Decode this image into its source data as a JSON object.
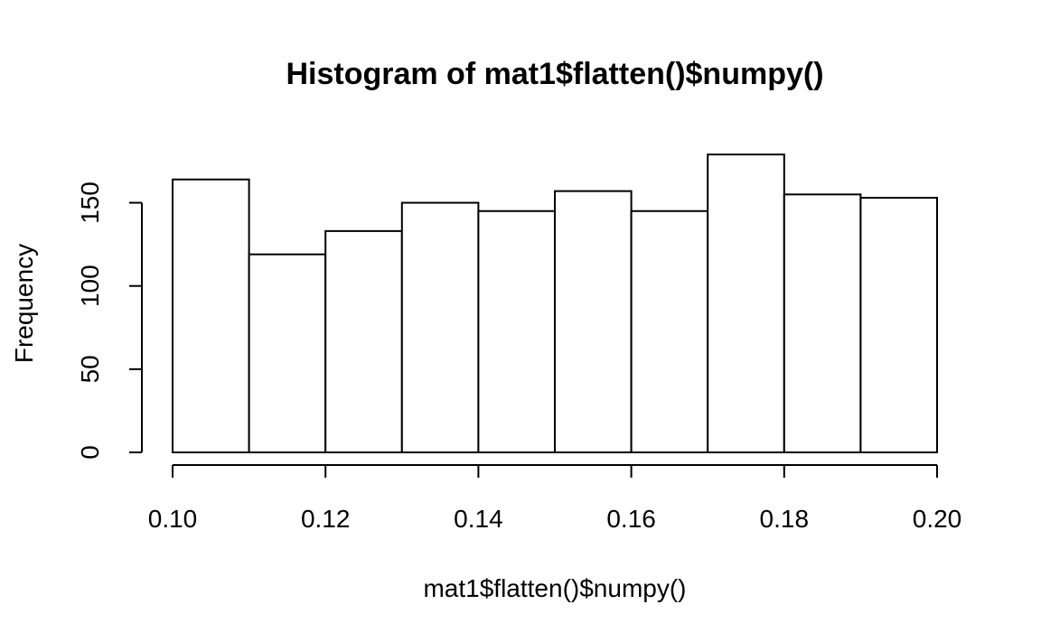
{
  "chart_data": {
    "type": "bar",
    "title": "Histogram of mat1$flatten()$numpy()",
    "xlabel": "mat1$flatten()$numpy()",
    "ylabel": "Frequency",
    "bin_edges": [
      0.1,
      0.11,
      0.12,
      0.13,
      0.14,
      0.15,
      0.16,
      0.17,
      0.18,
      0.19,
      0.2
    ],
    "values": [
      164,
      119,
      133,
      150,
      145,
      157,
      145,
      179,
      155,
      153
    ],
    "xlim": [
      0.1,
      0.2
    ],
    "ylim": [
      0,
      180
    ],
    "x_ticks": [
      "0.10",
      "0.12",
      "0.14",
      "0.16",
      "0.18",
      "0.20"
    ],
    "y_ticks": [
      "0",
      "50",
      "100",
      "150"
    ],
    "grid": false,
    "bar_fill": "#ffffff",
    "bar_stroke": "#000000"
  }
}
